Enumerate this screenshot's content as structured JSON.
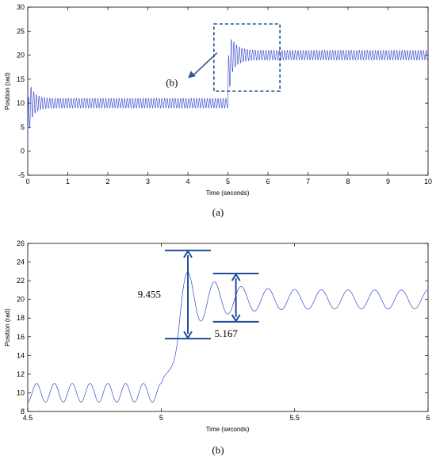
{
  "chart_data": [
    {
      "type": "line",
      "caption": "(a)",
      "xlabel": "Time (seconds)",
      "ylabel": "Position (rad)",
      "xlim": [
        0,
        10
      ],
      "ylim": [
        -5,
        30
      ],
      "xticks": [
        0,
        1,
        2,
        3,
        4,
        5,
        6,
        7,
        8,
        9,
        10
      ],
      "yticks": [
        -5,
        0,
        5,
        10,
        15,
        20,
        25,
        30
      ],
      "series_color": "#3344cc",
      "step": {
        "t_step": 5.0,
        "level_before": 10,
        "level_after": 20,
        "peak_initial": 15,
        "peak_after_step": 25.2,
        "ripple_amplitude": 1.0,
        "ripple_period": 0.0667
      },
      "annotation": {
        "label": "(b)",
        "box_x": [
          4.65,
          6.3
        ],
        "box_y": [
          12.5,
          26.5
        ],
        "box_color": "#1f4e99"
      },
      "grid": false,
      "legend": "none"
    },
    {
      "type": "line",
      "caption": "(b)",
      "xlabel": "Time (seconds)",
      "ylabel": "Position (rad)",
      "xlim": [
        4.5,
        6
      ],
      "ylim": [
        8,
        26
      ],
      "xticks": [
        4.5,
        5,
        5.5,
        6
      ],
      "yticks": [
        8,
        10,
        12,
        14,
        16,
        18,
        20,
        22,
        24,
        26
      ],
      "series_color": "#3344cc",
      "step": {
        "t_step": 5.0,
        "level_before": 10,
        "level_after": 20,
        "peak_time": 5.1,
        "peak_value": 25.2,
        "ripple_amplitude": 1.0,
        "ripple_period": 0.0667
      },
      "annotations": [
        {
          "label": "9.455",
          "y_low": 15.8,
          "y_high": 25.25,
          "x": 5.1
        },
        {
          "label": "5.167",
          "y_low": 17.6,
          "y_high": 22.77,
          "x": 5.28
        }
      ],
      "annotation_color": "#1f4e99",
      "grid": false,
      "legend": "none"
    }
  ]
}
